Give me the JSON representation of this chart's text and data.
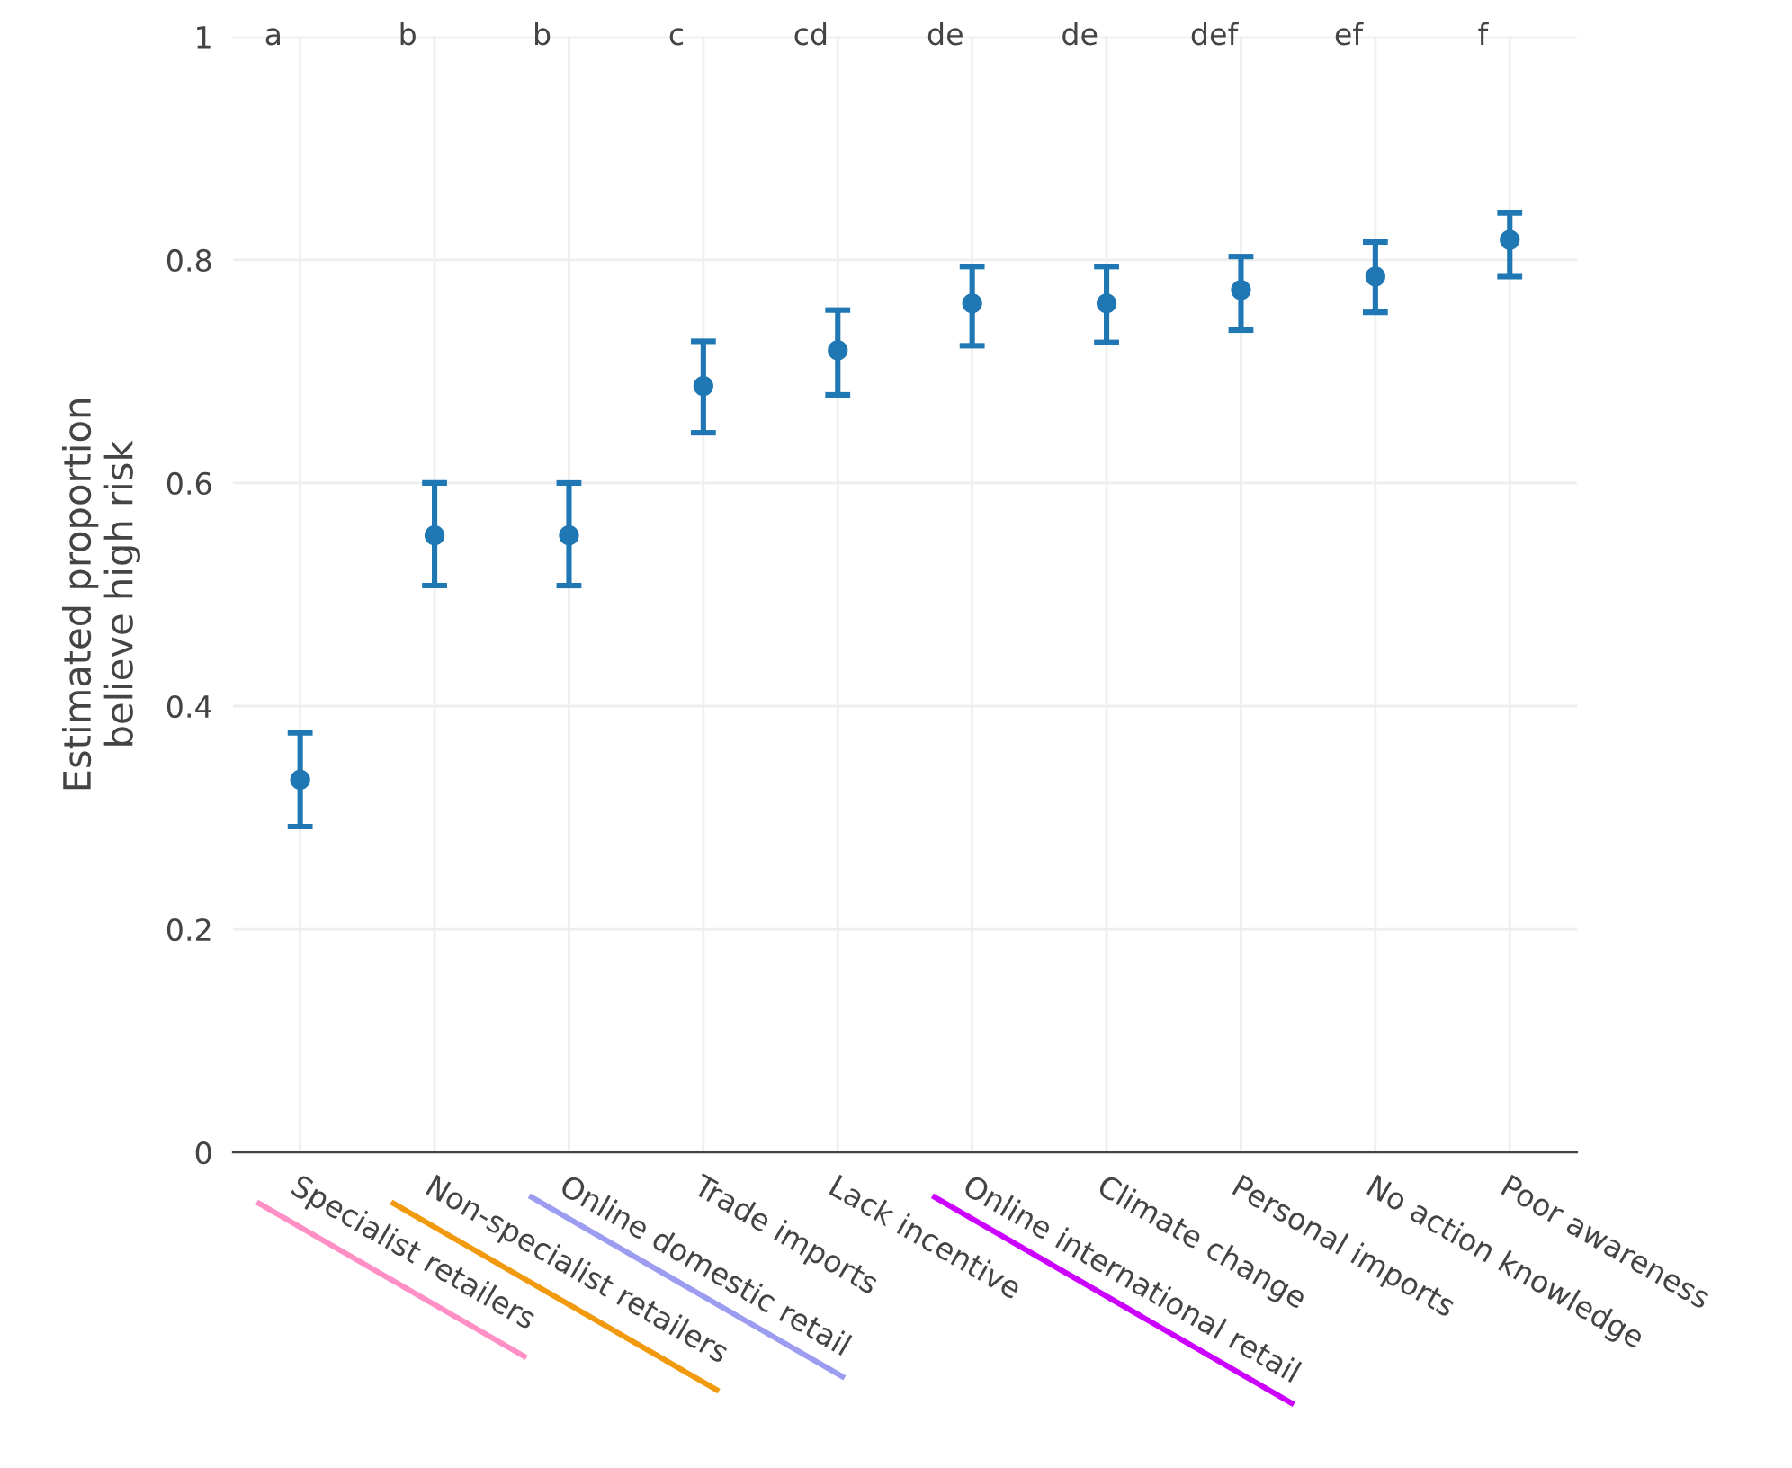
{
  "chart_data": {
    "type": "scatter",
    "ylabel": "Estimated proportion\nbelieve high risk",
    "categories": [
      "Specialist retailers",
      "Non-specialist retailers",
      "Online domestic retail",
      "Trade imports",
      "Lack incentive",
      "Online international retail",
      "Climate change",
      "Personal imports",
      "No action knowledge",
      "Poor awareness"
    ],
    "series": [
      {
        "color": "#1f77b4",
        "values": [
          0.334,
          0.553,
          0.553,
          0.687,
          0.719,
          0.761,
          0.761,
          0.773,
          0.785,
          0.818
        ],
        "errors": [
          [
            0.292,
            0.376
          ],
          [
            0.508,
            0.6
          ],
          [
            0.508,
            0.6
          ],
          [
            0.645,
            0.727
          ],
          [
            0.679,
            0.755
          ],
          [
            0.723,
            0.794
          ],
          [
            0.726,
            0.794
          ],
          [
            0.737,
            0.803
          ],
          [
            0.753,
            0.816
          ],
          [
            0.785,
            0.842
          ]
        ]
      }
    ],
    "ylim": [
      0,
      1
    ],
    "yticks": [
      0,
      0.2,
      0.4,
      0.6,
      0.8,
      1
    ],
    "grid": true,
    "marker": "circle",
    "annotations": [
      "a",
      "b",
      "b",
      "c",
      "cd",
      "de",
      "de",
      "def",
      "ef",
      "f"
    ]
  }
}
